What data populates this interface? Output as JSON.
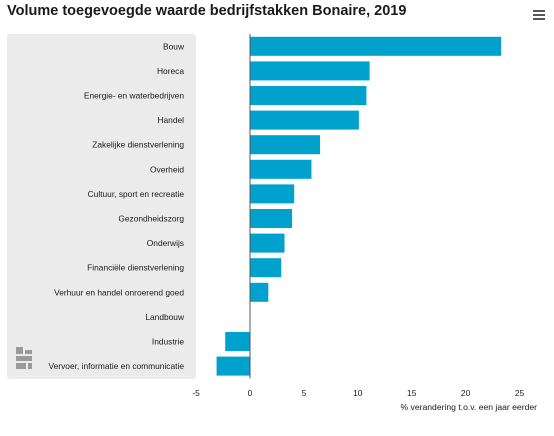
{
  "title": "Volume toegevoegde waarde bedrijfstakken Bonaire, 2019",
  "menu_icon": "hamburger-menu-icon",
  "logo_icon": "cbs-logo-icon",
  "colors": {
    "bar": "#00a1cd",
    "plot_background": "#ebebeb",
    "zero_line": "#555555"
  },
  "chart_data": {
    "type": "bar",
    "orientation": "horizontal",
    "title": "Volume toegevoegde waarde bedrijfstakken Bonaire, 2019",
    "xlabel": "% verandering t.o.v. een jaar eerder",
    "ylabel": "",
    "xlim": [
      -5,
      25
    ],
    "xticks": [
      "-5",
      "0",
      "5",
      "10",
      "15",
      "20",
      "25"
    ],
    "grid": false,
    "categories": [
      "Bouw",
      "Horeca",
      "Energie- en waterbedrijven",
      "Handel",
      "Zakelijke dienstverlening",
      "Overheid",
      "Cultuur, sport en recreatie",
      "Gezondheidszorg",
      "Onderwijs",
      "Financiële dienstverlening",
      "Verhuur en handel onroerend goed",
      "Landbouw",
      "Industrie",
      "Vervoer, informatie en communicatie"
    ],
    "values": [
      23.3,
      11.1,
      10.8,
      10.1,
      6.5,
      5.7,
      4.1,
      3.9,
      3.2,
      2.9,
      1.7,
      0,
      -2.3,
      -3.1
    ]
  }
}
